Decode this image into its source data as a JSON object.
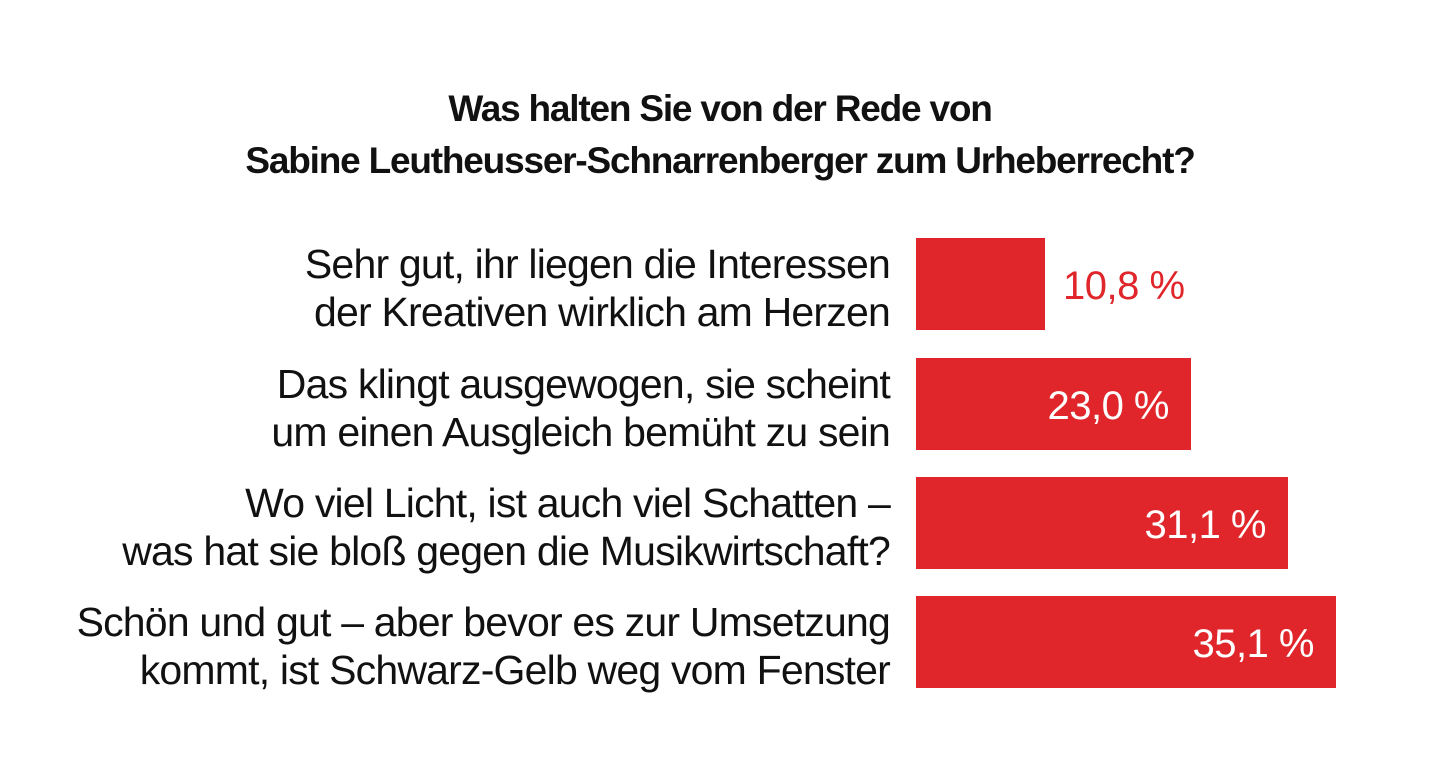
{
  "chart_data": {
    "type": "bar",
    "orientation": "horizontal",
    "title": [
      "Was halten Sie von der Rede von",
      "Sabine Leutheusser-Schnarrenberger zum Urheberrecht?"
    ],
    "categories": [
      [
        "Sehr gut, ihr liegen die Interessen",
        "der Kreativen wirklich am Herzen"
      ],
      [
        "Das klingt ausgewogen, sie scheint",
        "um einen Ausgleich bemüht zu sein"
      ],
      [
        "Wo viel Licht, ist auch viel Schatten –",
        "was hat sie bloß gegen die Musikwirtschaft?"
      ],
      [
        "Schön und gut – aber bevor es zur Umsetzung",
        "kommt, ist Schwarz-Gelb weg vom Fenster"
      ]
    ],
    "values": [
      10.8,
      23.0,
      31.1,
      35.1
    ],
    "value_labels": [
      "10,8 %",
      "23,0 %",
      "31,1 %",
      "35,1 %"
    ],
    "unit": "%",
    "xlim": [
      0,
      35.1
    ],
    "grid": false,
    "legend": "none",
    "bar_color": "#e0262a",
    "label_color_outside": "#e0262a",
    "label_color_inside": "#ffffff"
  }
}
